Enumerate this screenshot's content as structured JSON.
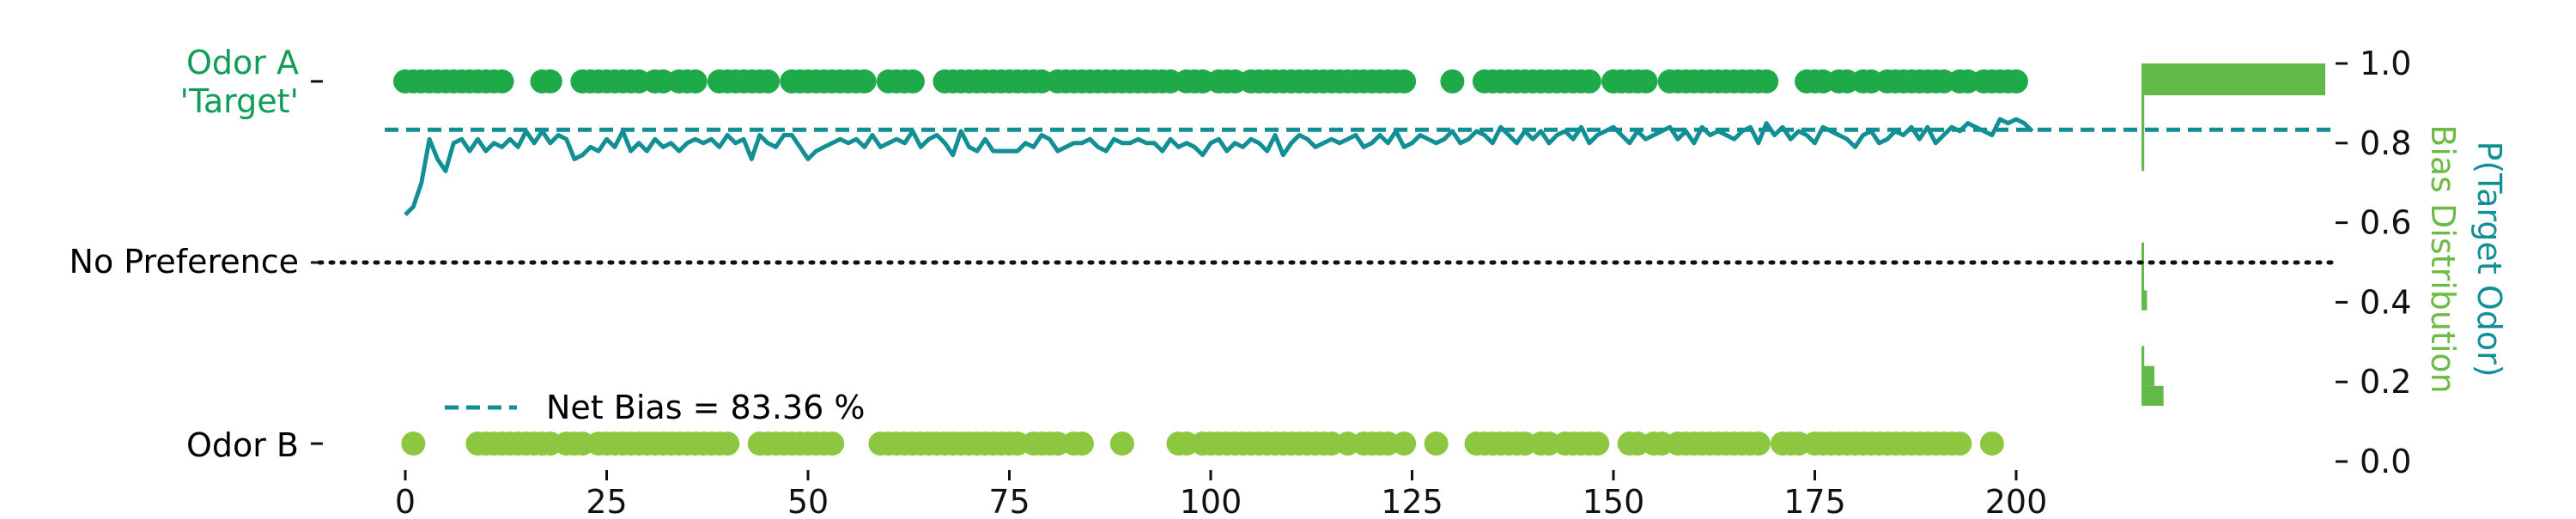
{
  "colors": {
    "odor_a": "#0f9d58",
    "odor_a_dots": "#1faa4a",
    "odor_b_dots": "#8dc63f",
    "trace": "#118f94",
    "hist": "#62b947",
    "bias_label": "#6dbb45",
    "text": "#111111"
  },
  "chart_data": {
    "type": "line",
    "y_left_labels": [
      "Odor A",
      "'Target'",
      "No Preference",
      "Odor B"
    ],
    "right_axis_label_outer": "P(Target Odor)",
    "right_axis_label_inner": "Bias Distribution",
    "legend_label": "Net Bias = 83.36 %",
    "legend_placement": "lower-left",
    "xlim": [
      -5,
      203
    ],
    "ylim": [
      0,
      1.0
    ],
    "xticks": [
      0,
      25,
      50,
      75,
      100,
      125,
      150,
      175,
      200
    ],
    "yticks": [
      0.0,
      0.2,
      0.4,
      0.6,
      0.8,
      1.0
    ],
    "ytick_labels": [
      "0.0",
      "0.2",
      "0.4",
      "0.6",
      "0.8",
      "1.0"
    ],
    "net_bias": 0.8336,
    "no_preference": 0.5,
    "odor_a_y": 0.955,
    "odor_b_y": 0.045,
    "odor_a_trials": [
      0,
      1,
      2,
      3,
      4,
      5,
      6,
      7,
      8,
      9,
      10,
      11,
      12,
      17,
      18,
      22,
      23,
      24,
      25,
      26,
      27,
      28,
      29,
      31,
      32,
      34,
      35,
      36,
      39,
      40,
      41,
      42,
      43,
      44,
      45,
      48,
      49,
      50,
      51,
      52,
      53,
      54,
      55,
      56,
      57,
      60,
      61,
      62,
      63,
      67,
      68,
      69,
      70,
      71,
      72,
      73,
      74,
      75,
      76,
      77,
      78,
      79,
      81,
      82,
      83,
      84,
      85,
      86,
      87,
      88,
      89,
      90,
      91,
      92,
      93,
      94,
      95,
      97,
      98,
      99,
      101,
      102,
      103,
      105,
      106,
      107,
      108,
      109,
      110,
      111,
      112,
      113,
      114,
      115,
      116,
      117,
      118,
      119,
      120,
      121,
      122,
      123,
      124,
      130,
      134,
      135,
      136,
      137,
      138,
      139,
      140,
      141,
      142,
      143,
      144,
      145,
      146,
      147,
      150,
      151,
      152,
      153,
      154,
      157,
      158,
      159,
      160,
      161,
      162,
      163,
      164,
      165,
      166,
      167,
      168,
      169,
      174,
      175,
      176,
      178,
      179,
      181,
      182,
      184,
      185,
      186,
      187,
      188,
      189,
      190,
      191,
      193,
      194,
      196,
      197,
      198,
      199,
      200
    ],
    "odor_b_trials": [
      1,
      9,
      10,
      11,
      12,
      13,
      14,
      15,
      16,
      17,
      18,
      20,
      21,
      22,
      24,
      25,
      26,
      27,
      28,
      29,
      30,
      31,
      32,
      33,
      34,
      35,
      36,
      37,
      38,
      39,
      40,
      44,
      45,
      46,
      47,
      48,
      49,
      50,
      51,
      52,
      53,
      59,
      60,
      61,
      62,
      63,
      64,
      65,
      66,
      67,
      68,
      69,
      70,
      71,
      72,
      73,
      74,
      75,
      76,
      78,
      79,
      80,
      81,
      83,
      84,
      89,
      96,
      97,
      99,
      100,
      101,
      102,
      103,
      104,
      105,
      106,
      107,
      108,
      109,
      110,
      111,
      112,
      113,
      114,
      115,
      117,
      119,
      120,
      121,
      122,
      124,
      128,
      133,
      134,
      135,
      136,
      137,
      138,
      139,
      141,
      142,
      144,
      145,
      146,
      147,
      148,
      152,
      153,
      155,
      156,
      158,
      159,
      160,
      161,
      162,
      163,
      164,
      165,
      166,
      167,
      168,
      171,
      172,
      173,
      175,
      176,
      177,
      178,
      179,
      180,
      181,
      182,
      183,
      184,
      185,
      186,
      187,
      188,
      189,
      190,
      191,
      192,
      193,
      197
    ],
    "p_target": [
      0.62,
      0.64,
      0.7,
      0.81,
      0.76,
      0.73,
      0.8,
      0.81,
      0.78,
      0.81,
      0.78,
      0.8,
      0.79,
      0.81,
      0.79,
      0.83,
      0.8,
      0.83,
      0.8,
      0.82,
      0.81,
      0.76,
      0.77,
      0.79,
      0.78,
      0.81,
      0.79,
      0.83,
      0.78,
      0.8,
      0.78,
      0.81,
      0.79,
      0.8,
      0.78,
      0.8,
      0.81,
      0.8,
      0.81,
      0.79,
      0.82,
      0.8,
      0.81,
      0.76,
      0.82,
      0.8,
      0.79,
      0.82,
      0.82,
      0.79,
      0.76,
      0.78,
      0.79,
      0.8,
      0.81,
      0.8,
      0.81,
      0.79,
      0.82,
      0.79,
      0.8,
      0.81,
      0.8,
      0.83,
      0.79,
      0.81,
      0.82,
      0.8,
      0.77,
      0.83,
      0.79,
      0.78,
      0.81,
      0.78,
      0.78,
      0.78,
      0.78,
      0.8,
      0.79,
      0.82,
      0.81,
      0.78,
      0.79,
      0.8,
      0.8,
      0.81,
      0.79,
      0.78,
      0.81,
      0.8,
      0.8,
      0.81,
      0.8,
      0.8,
      0.78,
      0.81,
      0.79,
      0.8,
      0.79,
      0.77,
      0.8,
      0.81,
      0.78,
      0.8,
      0.79,
      0.81,
      0.8,
      0.78,
      0.82,
      0.77,
      0.8,
      0.82,
      0.81,
      0.79,
      0.8,
      0.81,
      0.8,
      0.81,
      0.82,
      0.79,
      0.8,
      0.82,
      0.8,
      0.83,
      0.79,
      0.8,
      0.82,
      0.81,
      0.8,
      0.81,
      0.83,
      0.8,
      0.81,
      0.83,
      0.82,
      0.8,
      0.84,
      0.82,
      0.8,
      0.83,
      0.81,
      0.83,
      0.8,
      0.82,
      0.83,
      0.81,
      0.84,
      0.8,
      0.82,
      0.83,
      0.84,
      0.82,
      0.8,
      0.83,
      0.81,
      0.82,
      0.83,
      0.84,
      0.81,
      0.83,
      0.8,
      0.84,
      0.82,
      0.83,
      0.82,
      0.81,
      0.83,
      0.84,
      0.8,
      0.85,
      0.82,
      0.84,
      0.81,
      0.83,
      0.82,
      0.8,
      0.84,
      0.83,
      0.82,
      0.81,
      0.79,
      0.82,
      0.83,
      0.8,
      0.81,
      0.83,
      0.82,
      0.84,
      0.81,
      0.84,
      0.8,
      0.82,
      0.84,
      0.83,
      0.85,
      0.84,
      0.83,
      0.82,
      0.86,
      0.85,
      0.86,
      0.85,
      0.83
    ],
    "hist_bins": [
      {
        "y0": 0.14,
        "y1": 0.19,
        "count": 0.12
      },
      {
        "y0": 0.19,
        "y1": 0.24,
        "count": 0.07
      },
      {
        "y0": 0.24,
        "y1": 0.29,
        "count": 0.015
      },
      {
        "y0": 0.38,
        "y1": 0.43,
        "count": 0.03
      },
      {
        "y0": 0.43,
        "y1": 0.55,
        "count": 0.012
      },
      {
        "y0": 0.73,
        "y1": 0.92,
        "count": 0.015
      },
      {
        "y0": 0.92,
        "y1": 1.0,
        "count": 1.0
      }
    ]
  }
}
